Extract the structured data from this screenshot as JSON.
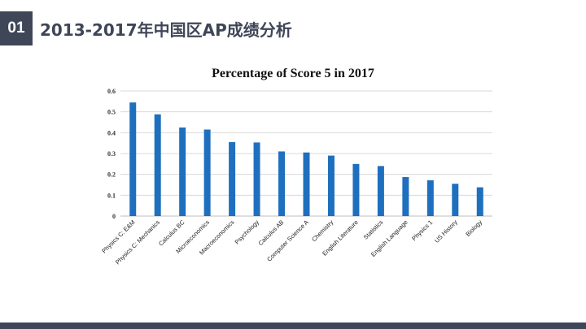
{
  "slide": {
    "badge": "01",
    "title": "2013-2017年中国区AP成绩分析"
  },
  "colors": {
    "bar": "#1f6fbf",
    "header": "#3f4658",
    "grid": "#d9d9d9",
    "axis": "#bfbfbf"
  },
  "chart_data": {
    "type": "bar",
    "title": "Percentage of Score 5 in 2017",
    "xlabel": "",
    "ylabel": "",
    "ylim": [
      0,
      0.6
    ],
    "yticks": [
      0,
      0.1,
      0.2,
      0.3,
      0.4,
      0.5,
      0.6
    ],
    "ytick_labels": [
      "0",
      "0.1",
      "0.2",
      "0.3",
      "0.4",
      "0.5",
      "0.6"
    ],
    "grid": true,
    "categories": [
      "Physics C: E&M",
      "Physics C: Mechanics",
      "Calculus BC",
      "Microeconomics",
      "Macroeconomics",
      "Psychology",
      "Calculus AB",
      "Computer Science A",
      "Chemistry",
      "English Literature",
      "Statistics",
      "English Language",
      "Physics 1",
      "US History",
      "Biology"
    ],
    "values": [
      0.545,
      0.488,
      0.425,
      0.415,
      0.355,
      0.353,
      0.31,
      0.305,
      0.29,
      0.25,
      0.24,
      0.187,
      0.172,
      0.155,
      0.138
    ]
  }
}
